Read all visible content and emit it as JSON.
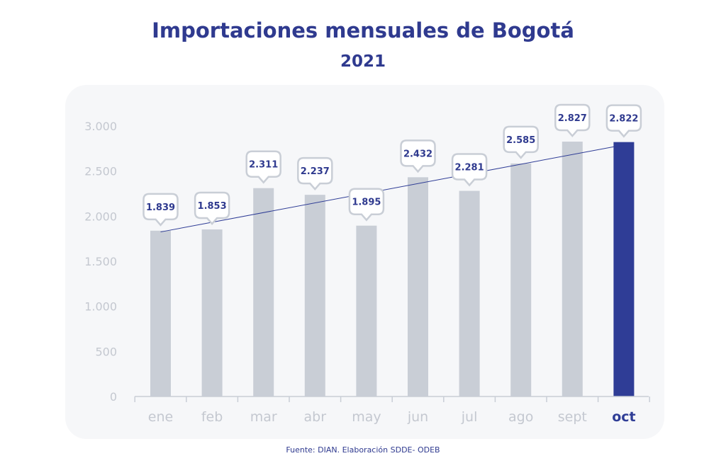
{
  "chart_data": {
    "type": "bar",
    "title": "Importaciones mensuales de Bogotá",
    "subtitle": "2021",
    "categories": [
      "ene",
      "feb",
      "mar",
      "abr",
      "may",
      "jun",
      "jul",
      "ago",
      "sept",
      "oct"
    ],
    "values": [
      1839,
      1853,
      2311,
      2237,
      1895,
      2432,
      2281,
      2585,
      2827,
      2822
    ],
    "value_labels": [
      "1.839",
      "1.853",
      "2.311",
      "2.237",
      "1.895",
      "2.432",
      "2.281",
      "2.585",
      "2.827",
      "2.822"
    ],
    "highlight_category": "oct",
    "trend_line": true,
    "ylim": [
      0,
      3000
    ],
    "yticks": [
      0,
      500,
      1000,
      1500,
      2000,
      2500,
      3000
    ],
    "ytick_labels": [
      "0",
      "500",
      "1.000",
      "1.500",
      "2.000",
      "2.500",
      "3.000"
    ],
    "grid": false,
    "colors": {
      "bar": "#c9ced6",
      "highlight": "#2f3d96",
      "trend": "#2f3d96",
      "axis_text": "#c4c8d0",
      "label_text": "#2f3a8f",
      "callout_border": "#c9ced6",
      "callout_fill": "#ffffff"
    }
  },
  "source": "Fuente: DIAN. Elaboración SDDE- ODEB"
}
